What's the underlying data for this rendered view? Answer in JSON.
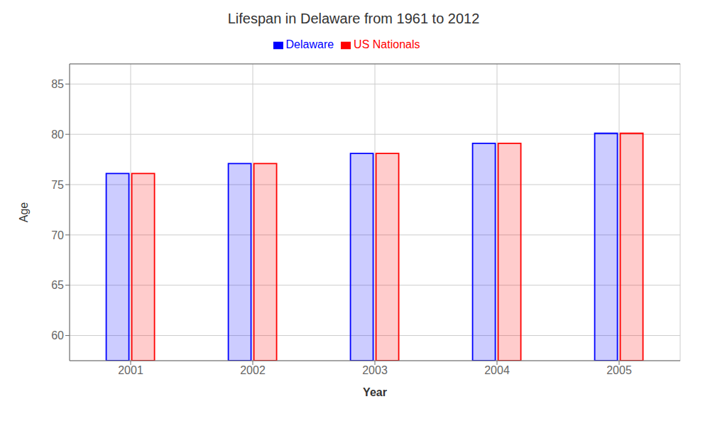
{
  "chart_data": {
    "type": "bar",
    "title": "Lifespan in Delaware from 1961 to 2012",
    "xlabel": "Year",
    "ylabel": "Age",
    "categories": [
      "2001",
      "2002",
      "2003",
      "2004",
      "2005"
    ],
    "series": [
      {
        "name": "Delaware",
        "color": "#0000ff",
        "values": [
          76.1,
          77.1,
          78.1,
          79.1,
          80.1
        ]
      },
      {
        "name": "US Nationals",
        "color": "#ff0000",
        "values": [
          76.1,
          77.1,
          78.1,
          79.1,
          80.1
        ]
      }
    ],
    "ylim": [
      57.5,
      87
    ],
    "yticks": [
      60,
      65,
      70,
      75,
      80,
      85
    ],
    "grid": true,
    "legend": "top"
  }
}
